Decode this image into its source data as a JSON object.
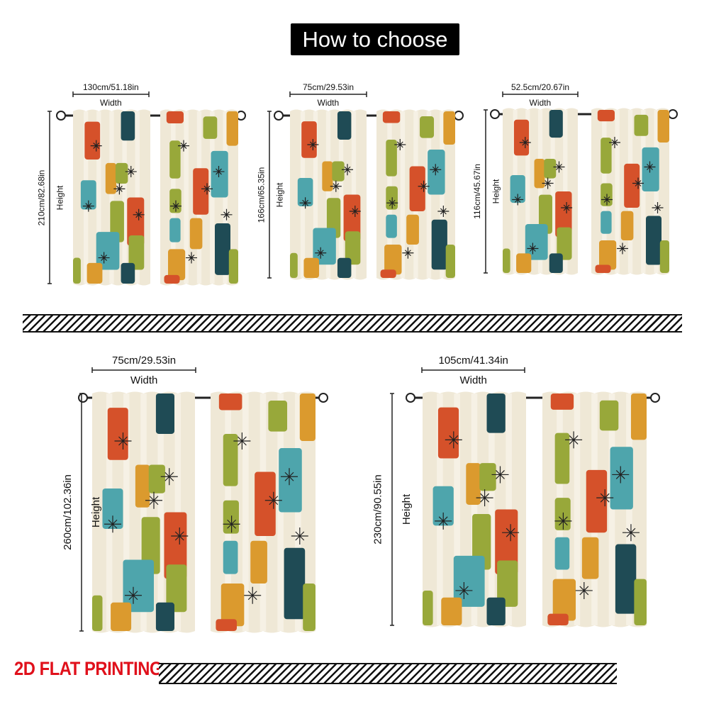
{
  "title": "How to choose",
  "footer_label": "2D FLAT PRINTING",
  "width_word": "Width",
  "height_word": "Height",
  "sizes": [
    {
      "width": "130cm/51.18in",
      "height": "210cm/82.68in"
    },
    {
      "width": "75cm/29.53in",
      "height": "166cm/65.35in"
    },
    {
      "width": "52.5cm/20.67in",
      "height": "116cm/45.67in"
    },
    {
      "width": "75cm/29.53in",
      "height": "260cm/102.36in"
    },
    {
      "width": "105cm/41.34in",
      "height": "230cm/90.55in"
    }
  ],
  "colors": {
    "fabric": "#efe8d6",
    "orange_red": "#d5512a",
    "teal": "#4ea5ac",
    "dark_teal": "#1f4b55",
    "olive": "#98a83a",
    "mustard": "#db9a2e",
    "accent_red": "#e0101b"
  }
}
